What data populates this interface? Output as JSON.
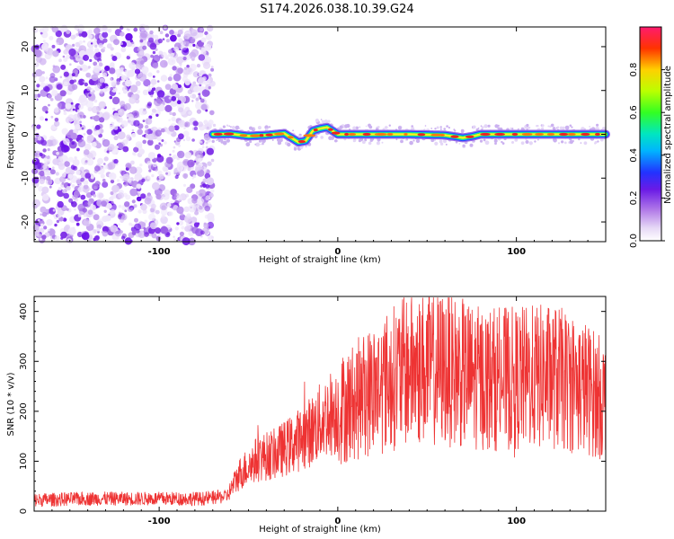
{
  "chart_data": [
    {
      "type": "heatmap",
      "title": "S174.2026.038.10.39.G24",
      "xlabel": "Height of straight line (km)",
      "ylabel": "Frequency (Hz)",
      "xlim": [
        -170,
        150
      ],
      "ylim": [
        -24.5,
        24.5
      ],
      "xticks": [
        -100,
        0,
        100
      ],
      "yticks": [
        -20,
        -10,
        0,
        10,
        20
      ],
      "colorbar": {
        "label": "Normalized spectral amplitude",
        "range": [
          0,
          1
        ],
        "ticks": [
          "0.0",
          "0.2",
          "0.4",
          "0.6",
          "0.8"
        ]
      },
      "noise_region_x": [
        -170,
        -70
      ],
      "signal_trace": {
        "x": [
          -70,
          -60,
          -50,
          -40,
          -30,
          -22,
          -18,
          -14,
          -10,
          -6,
          0,
          20,
          40,
          60,
          65,
          70,
          75,
          80,
          100,
          150
        ],
        "frequency": [
          0,
          0.1,
          -0.4,
          -0.2,
          0.2,
          -1.8,
          -1.5,
          0.8,
          1.3,
          1.6,
          0,
          0,
          0,
          -0.2,
          -0.5,
          -0.8,
          -0.5,
          0,
          0,
          0
        ]
      }
    },
    {
      "type": "line",
      "xlabel": "Height of straight line (km)",
      "ylabel": "SNR (10 * v/v)",
      "xlim": [
        -170,
        150
      ],
      "ylim": [
        0,
        430
      ],
      "xticks": [
        -100,
        0,
        100
      ],
      "yticks": [
        0,
        100,
        200,
        300,
        400
      ],
      "series": [
        {
          "name": "SNR",
          "color": "#ee3333",
          "envelope_x": [
            -170,
            -140,
            -100,
            -75,
            -62,
            -55,
            -45,
            -35,
            -25,
            -15,
            -5,
            0,
            5,
            20,
            40,
            60,
            80,
            100,
            120,
            140,
            150
          ],
          "envelope_y": [
            22,
            25,
            25,
            25,
            30,
            75,
            105,
            115,
            135,
            160,
            195,
            200,
            210,
            245,
            285,
            285,
            265,
            265,
            270,
            245,
            220
          ]
        }
      ]
    }
  ],
  "colors": {
    "snr_line": "#ee3333",
    "axis": "#000000"
  }
}
